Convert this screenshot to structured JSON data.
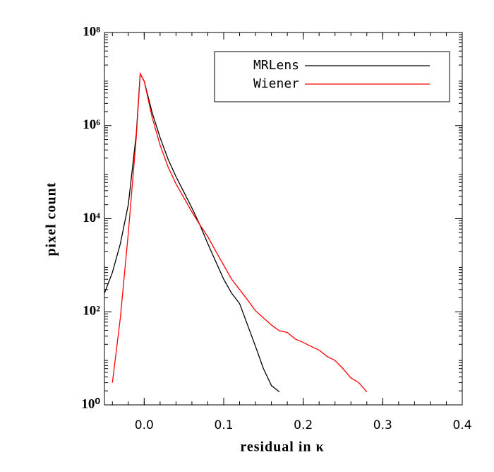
{
  "chart_data": {
    "type": "line",
    "x_label": "residual in κ",
    "y_label": "pixel count",
    "log_y": true,
    "legend": "top-right",
    "xlim": [
      -0.05,
      0.4
    ],
    "ylim": [
      1,
      100000000
    ],
    "xticks": [
      {
        "value": 0,
        "label": "0.0"
      },
      0.1,
      0.2,
      0.3,
      0.4
    ],
    "yticks": [
      {
        "value": 1,
        "label": "10⁰"
      },
      {
        "value": 100,
        "label": "10²"
      },
      {
        "value": 10000,
        "label": "10⁴"
      },
      {
        "value": 1000000,
        "label": "10⁶"
      },
      {
        "value": 100000000,
        "label": "10⁸"
      }
    ],
    "x": [
      -0.05,
      -0.04,
      -0.03,
      -0.02,
      -0.01,
      -0.005,
      0.0,
      0.01,
      0.02,
      0.03,
      0.04,
      0.05,
      0.06,
      0.07,
      0.08,
      0.09,
      0.1,
      0.11,
      0.12,
      0.13,
      0.14,
      0.15,
      0.16,
      0.17,
      0.18,
      0.19,
      0.2,
      0.21,
      0.22,
      0.23,
      0.24,
      0.25,
      0.26,
      0.27,
      0.28,
      0.29,
      0.3
    ],
    "series": [
      {
        "name": "MRLens",
        "color": "#000000",
        "values": [
          250,
          700,
          2900,
          20000,
          650000,
          13000000,
          9000000,
          1900000,
          550000,
          190000,
          80000,
          37000,
          17000,
          7400,
          2900,
          1200,
          500,
          250,
          150,
          52,
          18,
          6,
          2.6,
          1.9,
          null,
          null,
          null,
          null,
          null,
          null,
          null,
          null,
          null,
          null,
          null,
          null,
          null
        ]
      },
      {
        "name": "Wiener",
        "color": "#ff0000",
        "values": [
          null,
          3,
          74,
          4900,
          550000,
          13000000,
          9000000,
          1500000,
          380000,
          130000,
          56000,
          28000,
          14000,
          7400,
          4100,
          2000,
          1000,
          500,
          300,
          180,
          105,
          74,
          52,
          39,
          36,
          26,
          22,
          18,
          15,
          11,
          9,
          6,
          3.8,
          3,
          1.9,
          null,
          null
        ]
      }
    ]
  }
}
